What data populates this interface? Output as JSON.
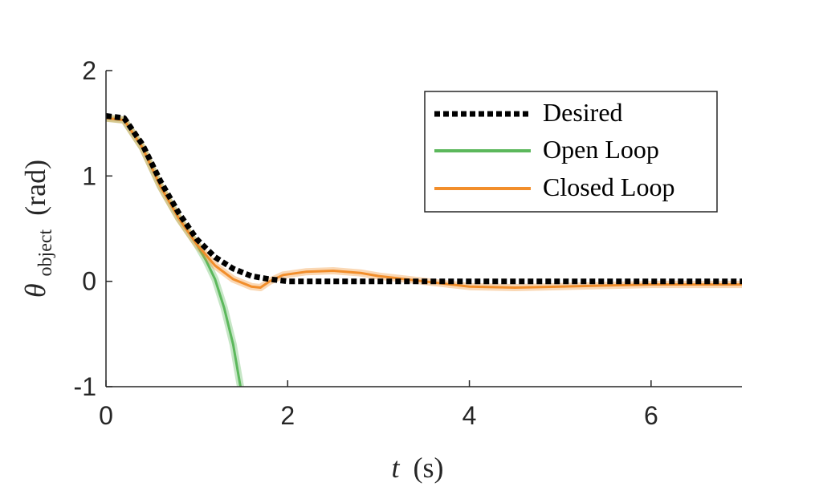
{
  "chart_data": {
    "type": "line",
    "xlabel_var": "t",
    "xlabel_unit": "(s)",
    "ylabel_var": "θ",
    "ylabel_sub": "object",
    "ylabel_unit": "(rad)",
    "xlim": [
      0,
      7
    ],
    "ylim": [
      -1,
      2
    ],
    "x_ticks": [
      0,
      2,
      4,
      6
    ],
    "x_tick_labels": [
      "0",
      "2",
      "4",
      "6"
    ],
    "y_ticks": [
      -1,
      0,
      1,
      2
    ],
    "y_tick_labels": [
      "-1",
      "0",
      "1",
      "2"
    ],
    "grid": false,
    "legend_position": "top-right",
    "series": [
      {
        "name": "Desired",
        "color": "#000000",
        "style": "dotted",
        "points": [
          [
            0,
            1.57
          ],
          [
            0.2,
            1.55
          ],
          [
            0.4,
            1.3
          ],
          [
            0.6,
            0.95
          ],
          [
            0.8,
            0.65
          ],
          [
            1.0,
            0.4
          ],
          [
            1.2,
            0.23
          ],
          [
            1.4,
            0.12
          ],
          [
            1.6,
            0.05
          ],
          [
            1.8,
            0.02
          ],
          [
            2.0,
            0.0
          ],
          [
            2.5,
            0.0
          ],
          [
            3.0,
            0.0
          ],
          [
            4.0,
            0.0
          ],
          [
            5.0,
            0.0
          ],
          [
            6.0,
            0.0
          ],
          [
            7.0,
            0.0
          ]
        ]
      },
      {
        "name": "Open Loop",
        "color": "#5cb85c",
        "style": "solid",
        "points": [
          [
            0,
            1.55
          ],
          [
            0.2,
            1.53
          ],
          [
            0.4,
            1.27
          ],
          [
            0.6,
            0.9
          ],
          [
            0.8,
            0.6
          ],
          [
            1.0,
            0.35
          ],
          [
            1.1,
            0.2
          ],
          [
            1.2,
            0.02
          ],
          [
            1.3,
            -0.25
          ],
          [
            1.4,
            -0.6
          ],
          [
            1.46,
            -0.9
          ],
          [
            1.48,
            -1.0
          ]
        ]
      },
      {
        "name": "Closed Loop",
        "color": "#f28e2b",
        "style": "solid",
        "points": [
          [
            0,
            1.55
          ],
          [
            0.2,
            1.53
          ],
          [
            0.4,
            1.27
          ],
          [
            0.6,
            0.9
          ],
          [
            0.8,
            0.6
          ],
          [
            1.0,
            0.35
          ],
          [
            1.2,
            0.15
          ],
          [
            1.4,
            0.02
          ],
          [
            1.6,
            -0.05
          ],
          [
            1.7,
            -0.06
          ],
          [
            1.8,
            0.0
          ],
          [
            1.95,
            0.06
          ],
          [
            2.2,
            0.09
          ],
          [
            2.5,
            0.1
          ],
          [
            2.8,
            0.08
          ],
          [
            3.0,
            0.05
          ],
          [
            3.2,
            0.03
          ],
          [
            3.5,
            0.0
          ],
          [
            3.8,
            -0.03
          ],
          [
            4.0,
            -0.05
          ],
          [
            4.5,
            -0.06
          ],
          [
            5.0,
            -0.05
          ],
          [
            5.5,
            -0.04
          ],
          [
            6.0,
            -0.03
          ],
          [
            6.5,
            -0.03
          ],
          [
            7.0,
            -0.03
          ]
        ]
      }
    ]
  }
}
